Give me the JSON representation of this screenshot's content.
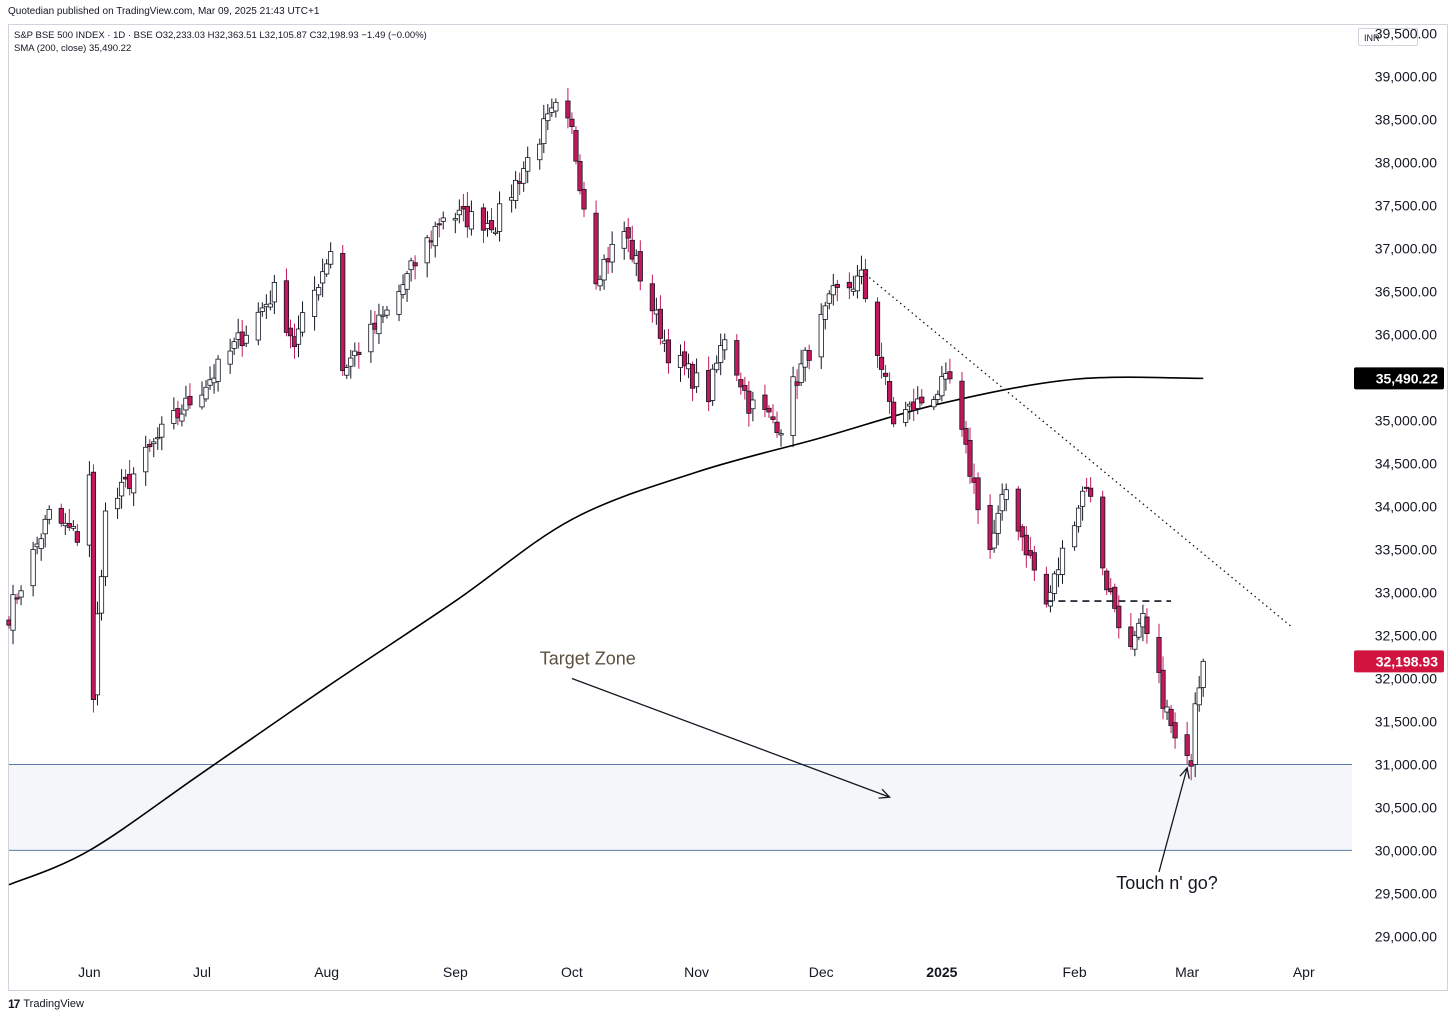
{
  "header": {
    "published": "Quotedian published on TradingView.com, Mar 09, 2025 21:43 UTC+1",
    "symbol_line": "S&P BSE 500 INDEX · 1D · BSE  O32,233.03  H32,363.51  L32,105.87  C32,198.93  −1.49 (−0.00%)",
    "sma_line": "SMA (200, close)  35,490.22",
    "currency": "INR"
  },
  "footer": {
    "brand": "TradingView",
    "logo": "17"
  },
  "colors": {
    "up": "#ffffff",
    "down": "#c2185b",
    "wick": "#131722",
    "sma": "#000000",
    "zone": "#f4f6fa",
    "zone_border": "#5d7aa8"
  },
  "chart_data": {
    "type": "candlestick",
    "y_unit": "INR",
    "ylim": [
      28400,
      39600
    ],
    "y_ticks": [
      29000,
      29500,
      30000,
      30500,
      31000,
      31500,
      32000,
      32500,
      33000,
      33500,
      34000,
      34500,
      35000,
      35500,
      36000,
      36500,
      37000,
      37500,
      38000,
      38500,
      39000,
      39500
    ],
    "y_tick_labels": [
      "29,000.00",
      "29,500.00",
      "30,000.00",
      "30,500.00",
      "31,000.00",
      "31,500.00",
      "32,000.00",
      "32,500.00",
      "33,000.00",
      "33,500.00",
      "34,000.00",
      "34,500.00",
      "35,000.00",
      "35,500.00",
      "36,000.00",
      "36,500.00",
      "37,000.00",
      "37,500.00",
      "38,000.00",
      "38,500.00",
      "39,000.00",
      "39,500.00"
    ],
    "x_start": "2024-05-14",
    "x_end": "2025-04-13",
    "x_ticks": [
      {
        "label": "Jun",
        "date": "2024-06-03",
        "bold": false
      },
      {
        "label": "Jul",
        "date": "2024-07-01",
        "bold": false
      },
      {
        "label": "Aug",
        "date": "2024-08-01",
        "bold": false
      },
      {
        "label": "Sep",
        "date": "2024-09-02",
        "bold": false
      },
      {
        "label": "Oct",
        "date": "2024-10-01",
        "bold": false
      },
      {
        "label": "Nov",
        "date": "2024-11-01",
        "bold": false
      },
      {
        "label": "Dec",
        "date": "2024-12-02",
        "bold": false
      },
      {
        "label": "2025",
        "date": "2025-01-01",
        "bold": true
      },
      {
        "label": "Feb",
        "date": "2025-02-03",
        "bold": false
      },
      {
        "label": "Mar",
        "date": "2025-03-03",
        "bold": false
      },
      {
        "label": "Apr",
        "date": "2025-04-01",
        "bold": false
      }
    ],
    "price_path": [
      [
        "2024-05-14",
        32750
      ],
      [
        "2024-05-24",
        33900
      ],
      [
        "2024-05-31",
        33650
      ],
      [
        "2024-06-03",
        34400
      ],
      [
        "2024-06-04",
        31700
      ],
      [
        "2024-06-05",
        32700
      ],
      [
        "2024-06-07",
        33900
      ],
      [
        "2024-06-21",
        34850
      ],
      [
        "2024-07-05",
        35600
      ],
      [
        "2024-07-19",
        36500
      ],
      [
        "2024-07-24",
        35900
      ],
      [
        "2024-08-02",
        37000
      ],
      [
        "2024-08-05",
        35600
      ],
      [
        "2024-08-16",
        36250
      ],
      [
        "2024-08-30",
        37400
      ],
      [
        "2024-09-12",
        37300
      ],
      [
        "2024-09-24",
        38400
      ],
      [
        "2024-09-27",
        38600
      ],
      [
        "2024-10-01",
        38350
      ],
      [
        "2024-10-07",
        36700
      ],
      [
        "2024-10-14",
        37200
      ],
      [
        "2024-10-25",
        35800
      ],
      [
        "2024-11-04",
        35300
      ],
      [
        "2024-11-08",
        36000
      ],
      [
        "2024-11-14",
        35200
      ],
      [
        "2024-11-22",
        34950
      ],
      [
        "2024-11-25",
        35400
      ],
      [
        "2024-12-05",
        36450
      ],
      [
        "2024-12-12",
        36650
      ],
      [
        "2024-12-20",
        35000
      ],
      [
        "2025-01-03",
        35450
      ],
      [
        "2025-01-06",
        34800
      ],
      [
        "2025-01-13",
        33500
      ],
      [
        "2025-01-17",
        34200
      ],
      [
        "2025-01-27",
        32850
      ],
      [
        "2025-02-03",
        33900
      ],
      [
        "2025-02-06",
        34300
      ],
      [
        "2025-02-11",
        33100
      ],
      [
        "2025-02-17",
        32300
      ],
      [
        "2025-02-20",
        32650
      ],
      [
        "2025-02-28",
        31250
      ],
      [
        "2025-03-03",
        31000
      ],
      [
        "2025-03-04",
        31100
      ],
      [
        "2025-03-05",
        31800
      ],
      [
        "2025-03-07",
        32198.93
      ]
    ],
    "sma_200_points": [
      [
        "2024-05-14",
        29600
      ],
      [
        "2024-06-03",
        30000
      ],
      [
        "2024-07-01",
        30900
      ],
      [
        "2024-08-01",
        31900
      ],
      [
        "2024-09-02",
        32900
      ],
      [
        "2024-10-01",
        33850
      ],
      [
        "2024-11-01",
        34400
      ],
      [
        "2024-12-02",
        34800
      ],
      [
        "2025-01-01",
        35200
      ],
      [
        "2025-02-03",
        35480
      ],
      [
        "2025-03-07",
        35490.22
      ]
    ],
    "last_price": 32198.93,
    "last_price_label": "32,198.93",
    "sma_value": 35490.22,
    "sma_label": "35,490.22",
    "target_zone": {
      "low": 30000,
      "high": 31000
    },
    "trendline_dotted": {
      "from": [
        "2024-12-13",
        36700
      ],
      "to": [
        "2025-03-29",
        32600
      ]
    },
    "dashed_level": {
      "value": 32900,
      "from": "2025-01-27",
      "to": "2025-02-27"
    },
    "annotations": [
      {
        "text": "Target Zone",
        "at": [
          "2024-09-23",
          32160
        ],
        "arrow_from": [
          "2024-10-01",
          32000
        ],
        "arrow_to": [
          "2024-12-19",
          30620
        ]
      },
      {
        "text": "Touch n' go?",
        "at": [
          "2025-02-26",
          29550
        ],
        "arrow_from": [
          "2025-02-24",
          29750
        ],
        "arrow_to": [
          "2025-03-03",
          30960
        ]
      }
    ]
  }
}
